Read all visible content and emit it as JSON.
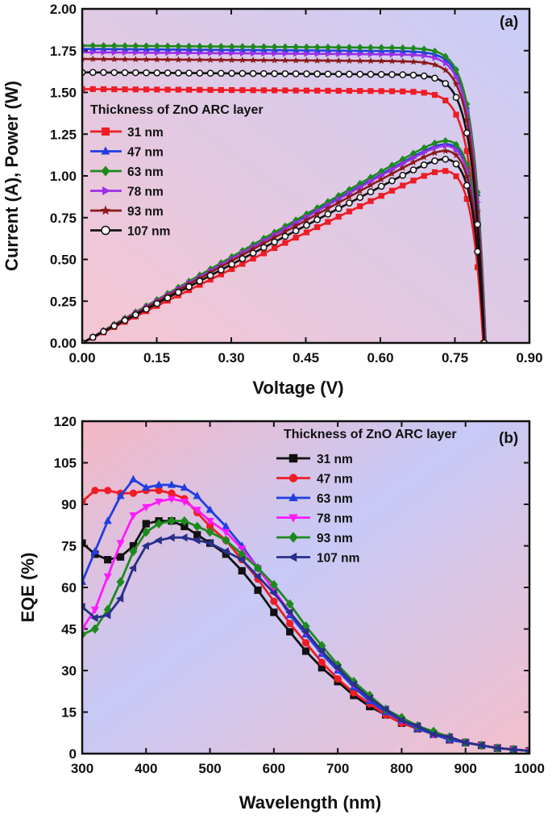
{
  "chart_data": [
    {
      "type": "line",
      "panel_label": "(a)",
      "title": "",
      "xlabel": "Voltage (V)",
      "ylabel": "Current (A), Power (W)",
      "xlim": [
        0,
        0.9
      ],
      "ylim": [
        0,
        2.0
      ],
      "xticks": [
        "0.00",
        "0.15",
        "0.30",
        "0.45",
        "0.60",
        "0.75",
        "0.90"
      ],
      "yticks": [
        "0.00",
        "0.25",
        "0.50",
        "0.75",
        "1.00",
        "1.25",
        "1.50",
        "1.75",
        "2.00"
      ],
      "legend_title": "Thickness of ZnO ARC layer",
      "legend_position": "center-left",
      "series": [
        {
          "name": "31 nm",
          "color": "#ee1c25",
          "marker": "square",
          "isc": 1.52,
          "voc": 0.807,
          "pmax": 1.03,
          "vmp": 0.7
        },
        {
          "name": "47 nm",
          "color": "#1f3fe0",
          "marker": "triangle-up",
          "isc": 1.76,
          "voc": 0.812,
          "pmax": 1.19,
          "vmp": 0.71
        },
        {
          "name": "63 nm",
          "color": "#1d8a1d",
          "marker": "diamond",
          "isc": 1.78,
          "voc": 0.812,
          "pmax": 1.21,
          "vmp": 0.71
        },
        {
          "name": "78 nm",
          "color": "#9b30e8",
          "marker": "triangle-right",
          "isc": 1.74,
          "voc": 0.811,
          "pmax": 1.18,
          "vmp": 0.71
        },
        {
          "name": "93 nm",
          "color": "#8b1a1a",
          "marker": "star",
          "isc": 1.7,
          "voc": 0.81,
          "pmax": 1.15,
          "vmp": 0.7
        },
        {
          "name": "107 nm",
          "color": "#111111",
          "marker": "circle",
          "isc": 1.62,
          "voc": 0.809,
          "pmax": 1.1,
          "vmp": 0.7
        }
      ]
    },
    {
      "type": "line",
      "panel_label": "(b)",
      "title": "",
      "xlabel": "Wavelength (nm)",
      "ylabel": "EQE (%)",
      "xlim": [
        300,
        1000
      ],
      "ylim": [
        0,
        120
      ],
      "xticks": [
        "300",
        "400",
        "500",
        "600",
        "700",
        "800",
        "900",
        "1000"
      ],
      "yticks": [
        "0",
        "15",
        "30",
        "45",
        "60",
        "75",
        "90",
        "105",
        "120"
      ],
      "legend_title": "Thickness of ZnO ARC layer",
      "legend_position": "top-right",
      "x": [
        300,
        320,
        340,
        360,
        380,
        400,
        420,
        440,
        460,
        480,
        500,
        525,
        550,
        575,
        600,
        625,
        650,
        675,
        700,
        725,
        750,
        775,
        800,
        825,
        850,
        875,
        900,
        925,
        950,
        975,
        1000
      ],
      "series": [
        {
          "name": "31 nm",
          "color": "#111111",
          "marker": "square",
          "values": [
            76,
            72,
            70,
            71,
            75,
            83,
            84,
            84,
            82,
            79,
            76,
            72,
            66,
            59,
            51,
            44,
            37,
            31,
            26,
            21,
            17,
            14,
            11,
            9,
            7,
            5,
            4,
            3,
            2,
            1.5,
            1
          ]
        },
        {
          "name": "47 nm",
          "color": "#ee1c25",
          "marker": "circle",
          "values": [
            91,
            95,
            95,
            94,
            94,
            95,
            95,
            94,
            92,
            87,
            82,
            77,
            70,
            63,
            55,
            47,
            40,
            33,
            27,
            22,
            18,
            14,
            11,
            9,
            7,
            5,
            4,
            3,
            2,
            1.5,
            1
          ]
        },
        {
          "name": "63 nm",
          "color": "#1f3fe0",
          "marker": "triangle-up",
          "values": [
            62,
            73,
            84,
            93,
            99,
            96,
            97,
            97,
            96,
            93,
            88,
            82,
            75,
            67,
            59,
            50,
            43,
            36,
            30,
            24,
            19,
            15,
            12,
            9,
            7,
            5,
            4,
            3,
            2,
            1.5,
            1
          ]
        },
        {
          "name": "78 nm",
          "color": "#ff1aff",
          "marker": "triangle-down",
          "values": [
            45,
            52,
            64,
            76,
            86,
            89,
            91,
            92,
            91,
            88,
            84,
            80,
            74,
            67,
            59,
            51,
            44,
            37,
            31,
            25,
            20,
            16,
            12,
            10,
            7,
            6,
            4,
            3,
            2,
            1.5,
            1
          ]
        },
        {
          "name": "93 nm",
          "color": "#1d8a1d",
          "marker": "diamond",
          "values": [
            43,
            45,
            52,
            62,
            73,
            80,
            83,
            84,
            84,
            82,
            80,
            77,
            72,
            67,
            61,
            54,
            46,
            39,
            32,
            26,
            21,
            16,
            13,
            10,
            8,
            6,
            4,
            3,
            2,
            1.5,
            1
          ]
        },
        {
          "name": "107 nm",
          "color": "#2a2f8a",
          "marker": "triangle-left",
          "values": [
            53,
            49,
            50,
            56,
            67,
            75,
            77,
            78,
            78,
            77,
            76,
            73,
            70,
            64,
            58,
            51,
            44,
            37,
            31,
            25,
            20,
            16,
            12,
            10,
            7,
            6,
            4,
            3,
            2,
            1.5,
            1
          ]
        }
      ]
    }
  ]
}
